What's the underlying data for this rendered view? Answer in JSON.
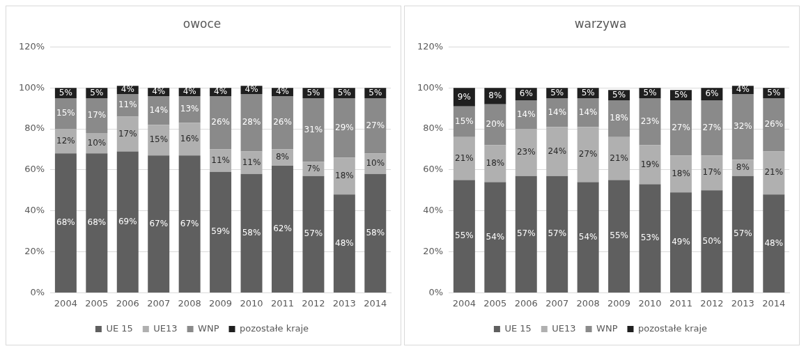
{
  "chart_data": [
    {
      "type": "bar",
      "title": "owoce",
      "stacked": true,
      "legend": "bottom",
      "grid": "y",
      "categories": [
        "2004",
        "2005",
        "2006",
        "2007",
        "2008",
        "2009",
        "2010",
        "2011",
        "2012",
        "2013",
        "2014"
      ],
      "ylim": [
        0,
        120
      ],
      "yticks": [
        {
          "value": 0,
          "label": "0%"
        },
        {
          "value": 20,
          "label": "20%"
        },
        {
          "value": 40,
          "label": "40%"
        },
        {
          "value": 60,
          "label": "60%"
        },
        {
          "value": 80,
          "label": "80%"
        },
        {
          "value": 100,
          "label": "100%"
        },
        {
          "value": 120,
          "label": "120%"
        }
      ],
      "series": [
        {
          "name": "UE 15",
          "color": "#5f5f5f",
          "values": [
            68,
            68,
            69,
            67,
            67,
            59,
            58,
            62,
            57,
            48,
            58
          ],
          "value_labels": [
            "68%",
            "68%",
            "69%",
            "67%",
            "67%",
            "59%",
            "58%",
            "62%",
            "57%",
            "48%",
            "58%"
          ]
        },
        {
          "name": "UE13",
          "color": "#b0b0b0",
          "values": [
            12,
            10,
            17,
            15,
            16,
            11,
            11,
            8,
            7,
            18,
            10
          ],
          "value_labels": [
            "12%",
            "10%",
            "17%",
            "15%",
            "16%",
            "11%",
            "11%",
            "8%",
            "7%",
            "18%",
            "10%"
          ]
        },
        {
          "name": "WNP",
          "color": "#8a8a8a",
          "values": [
            15,
            17,
            11,
            14,
            13,
            26,
            28,
            26,
            31,
            29,
            27
          ],
          "value_labels": [
            "15%",
            "17%",
            "11%",
            "14%",
            "13%",
            "26%",
            "28%",
            "26%",
            "31%",
            "29%",
            "27%"
          ]
        },
        {
          "name": "pozostałe kraje",
          "color": "#1f1f1f",
          "values": [
            5,
            5,
            4,
            4,
            4,
            4,
            4,
            4,
            5,
            5,
            5
          ],
          "value_labels": [
            "5%",
            "5%",
            "4%",
            "4%",
            "4%",
            "4%",
            "4%",
            "4%",
            "5%",
            "5%",
            "5%"
          ]
        }
      ]
    },
    {
      "type": "bar",
      "title": "warzywa",
      "stacked": true,
      "legend": "bottom",
      "grid": "y",
      "categories": [
        "2004",
        "2005",
        "2006",
        "2007",
        "2008",
        "2009",
        "2010",
        "2011",
        "2012",
        "2013",
        "2014"
      ],
      "ylim": [
        0,
        120
      ],
      "yticks": [
        {
          "value": 0,
          "label": "0%"
        },
        {
          "value": 20,
          "label": "20%"
        },
        {
          "value": 40,
          "label": "40%"
        },
        {
          "value": 60,
          "label": "60%"
        },
        {
          "value": 80,
          "label": "80%"
        },
        {
          "value": 100,
          "label": "100%"
        },
        {
          "value": 120,
          "label": "120%"
        }
      ],
      "series": [
        {
          "name": "UE 15",
          "color": "#5f5f5f",
          "values": [
            55,
            54,
            57,
            57,
            54,
            55,
            53,
            49,
            50,
            57,
            48
          ],
          "value_labels": [
            "55%",
            "54%",
            "57%",
            "57%",
            "54%",
            "55%",
            "53%",
            "49%",
            "50%",
            "57%",
            "48%"
          ]
        },
        {
          "name": "UE13",
          "color": "#b0b0b0",
          "values": [
            21,
            18,
            23,
            24,
            27,
            21,
            19,
            18,
            17,
            8,
            21
          ],
          "value_labels": [
            "21%",
            "18%",
            "23%",
            "24%",
            "27%",
            "21%",
            "19%",
            "18%",
            "17%",
            "8%",
            "21%"
          ]
        },
        {
          "name": "WNP",
          "color": "#8a8a8a",
          "values": [
            15,
            20,
            14,
            14,
            14,
            18,
            23,
            27,
            27,
            32,
            26
          ],
          "value_labels": [
            "15%",
            "20%",
            "14%",
            "14%",
            "14%",
            "18%",
            "23%",
            "27%",
            "27%",
            "32%",
            "26%"
          ]
        },
        {
          "name": "pozostałe kraje",
          "color": "#1f1f1f",
          "values": [
            9,
            8,
            6,
            5,
            5,
            5,
            5,
            5,
            6,
            4,
            5
          ],
          "value_labels": [
            "9%",
            "8%",
            "6%",
            "5%",
            "5%",
            "5%",
            "5%",
            "5%",
            "6%",
            "4%",
            "5%"
          ]
        }
      ]
    }
  ]
}
